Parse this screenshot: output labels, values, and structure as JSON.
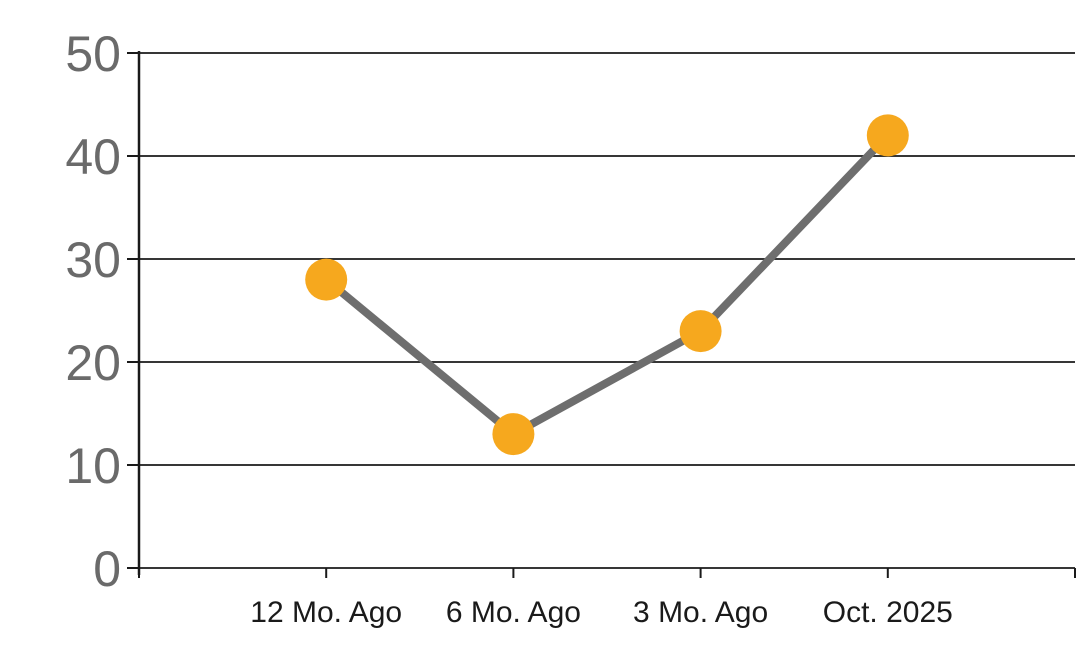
{
  "chart_data": {
    "type": "line",
    "title": "",
    "xlabel": "",
    "ylabel": "",
    "categories": [
      "12 Mo. Ago",
      "6 Mo. Ago",
      "3 Mo. Ago",
      "Oct. 2025"
    ],
    "values": [
      28,
      13,
      23,
      42
    ],
    "series": [
      {
        "name": "series-1",
        "values": [
          28,
          13,
          23,
          42
        ]
      }
    ],
    "ylim": [
      0,
      50
    ],
    "yticks": [
      0,
      10,
      20,
      30,
      40,
      50
    ],
    "grid": "horizontal",
    "legend_position": "none",
    "marker_style": "filled-circle",
    "colors": {
      "marker": "#F6A81E",
      "line": "#6E6E6E",
      "gridline": "#1A1A1A",
      "axis": "#1A1A1A",
      "ytick_label": "#6A6A6A",
      "xtick_label": "#1A1A1A",
      "background": "#FFFFFF"
    }
  }
}
